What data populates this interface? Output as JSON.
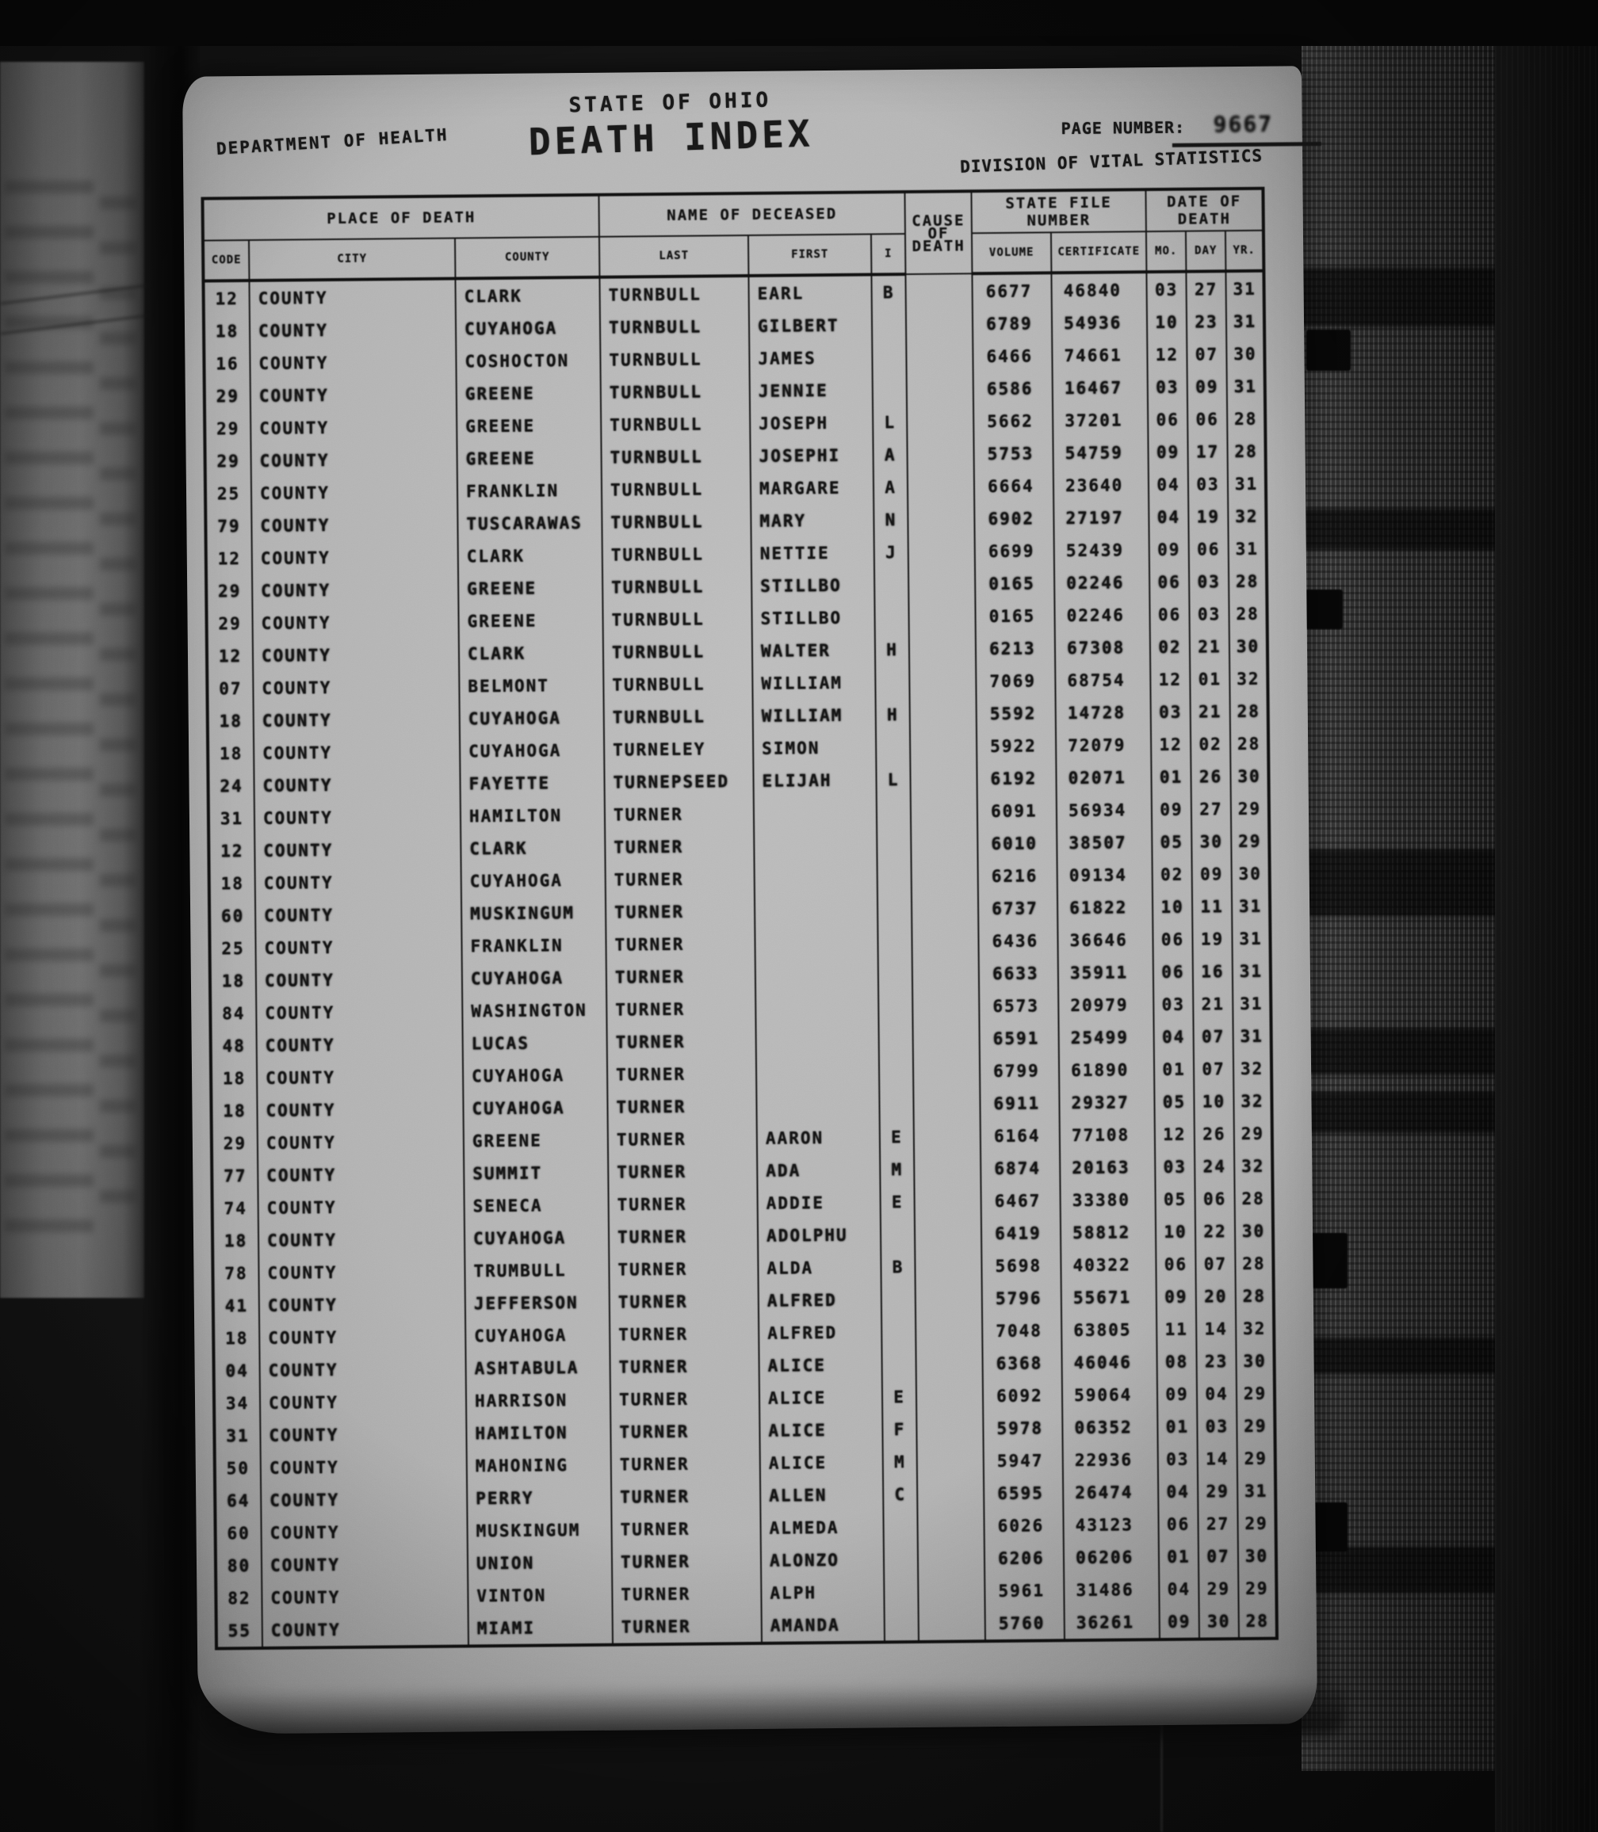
{
  "colors": {
    "page_bg": "#b4b4b4",
    "ink": "#1a1a1a",
    "film_bg": "#0e0e0e"
  },
  "header": {
    "department": "DEPARTMENT OF HEALTH",
    "state": "STATE OF OHIO",
    "title": "DEATH INDEX",
    "page_number_label": "PAGE NUMBER:",
    "page_number": "9667",
    "division": "DIVISION OF VITAL STATISTICS"
  },
  "table": {
    "groups": [
      {
        "label": "PLACE OF DEATH"
      },
      {
        "label": "NAME OF DECEASED"
      },
      {
        "label": "CAUSE OF DEATH"
      },
      {
        "label": "STATE FILE NUMBER"
      },
      {
        "label": "DATE OF DEATH"
      }
    ],
    "sub_columns": [
      "CODE",
      "CITY",
      "COUNTY",
      "LAST",
      "FIRST",
      "I",
      "VOLUME",
      "CERTIFICATE",
      "MO.",
      "DAY",
      "YR."
    ],
    "rows": [
      [
        "12",
        "COUNTY",
        "CLARK",
        "TURNBULL",
        "EARL",
        "B",
        "",
        "6677",
        "46840",
        "03",
        "27",
        "31"
      ],
      [
        "18",
        "COUNTY",
        "CUYAHOGA",
        "TURNBULL",
        "GILBERT",
        "",
        "",
        "6789",
        "54936",
        "10",
        "23",
        "31"
      ],
      [
        "16",
        "COUNTY",
        "COSHOCTON",
        "TURNBULL",
        "JAMES",
        "",
        "",
        "6466",
        "74661",
        "12",
        "07",
        "30"
      ],
      [
        "29",
        "COUNTY",
        "GREENE",
        "TURNBULL",
        "JENNIE",
        "",
        "",
        "6586",
        "16467",
        "03",
        "09",
        "31"
      ],
      [
        "29",
        "COUNTY",
        "GREENE",
        "TURNBULL",
        "JOSEPH",
        "L",
        "",
        "5662",
        "37201",
        "06",
        "06",
        "28"
      ],
      [
        "29",
        "COUNTY",
        "GREENE",
        "TURNBULL",
        "JOSEPHI",
        "A",
        "",
        "5753",
        "54759",
        "09",
        "17",
        "28"
      ],
      [
        "25",
        "COUNTY",
        "FRANKLIN",
        "TURNBULL",
        "MARGARE",
        "A",
        "",
        "6664",
        "23640",
        "04",
        "03",
        "31"
      ],
      [
        "79",
        "COUNTY",
        "TUSCARAWAS",
        "TURNBULL",
        "MARY",
        "N",
        "",
        "6902",
        "27197",
        "04",
        "19",
        "32"
      ],
      [
        "12",
        "COUNTY",
        "CLARK",
        "TURNBULL",
        "NETTIE",
        "J",
        "",
        "6699",
        "52439",
        "09",
        "06",
        "31"
      ],
      [
        "29",
        "COUNTY",
        "GREENE",
        "TURNBULL",
        "STILLBO",
        "",
        "",
        "0165",
        "02246",
        "06",
        "03",
        "28"
      ],
      [
        "29",
        "COUNTY",
        "GREENE",
        "TURNBULL",
        "STILLBO",
        "",
        "",
        "0165",
        "02246",
        "06",
        "03",
        "28"
      ],
      [
        "12",
        "COUNTY",
        "CLARK",
        "TURNBULL",
        "WALTER",
        "H",
        "",
        "6213",
        "67308",
        "02",
        "21",
        "30"
      ],
      [
        "07",
        "COUNTY",
        "BELMONT",
        "TURNBULL",
        "WILLIAM",
        "",
        "",
        "7069",
        "68754",
        "12",
        "01",
        "32"
      ],
      [
        "18",
        "COUNTY",
        "CUYAHOGA",
        "TURNBULL",
        "WILLIAM",
        "H",
        "",
        "5592",
        "14728",
        "03",
        "21",
        "28"
      ],
      [
        "18",
        "COUNTY",
        "CUYAHOGA",
        "TURNELEY",
        "SIMON",
        "",
        "",
        "5922",
        "72079",
        "12",
        "02",
        "28"
      ],
      [
        "24",
        "COUNTY",
        "FAYETTE",
        "TURNEPSEED",
        "ELIJAH",
        "L",
        "",
        "6192",
        "02071",
        "01",
        "26",
        "30"
      ],
      [
        "31",
        "COUNTY",
        "HAMILTON",
        "TURNER",
        "",
        "",
        "",
        "6091",
        "56934",
        "09",
        "27",
        "29"
      ],
      [
        "12",
        "COUNTY",
        "CLARK",
        "TURNER",
        "",
        "",
        "",
        "6010",
        "38507",
        "05",
        "30",
        "29"
      ],
      [
        "18",
        "COUNTY",
        "CUYAHOGA",
        "TURNER",
        "",
        "",
        "",
        "6216",
        "09134",
        "02",
        "09",
        "30"
      ],
      [
        "60",
        "COUNTY",
        "MUSKINGUM",
        "TURNER",
        "",
        "",
        "",
        "6737",
        "61822",
        "10",
        "11",
        "31"
      ],
      [
        "25",
        "COUNTY",
        "FRANKLIN",
        "TURNER",
        "",
        "",
        "",
        "6436",
        "36646",
        "06",
        "19",
        "31"
      ],
      [
        "18",
        "COUNTY",
        "CUYAHOGA",
        "TURNER",
        "",
        "",
        "",
        "6633",
        "35911",
        "06",
        "16",
        "31"
      ],
      [
        "84",
        "COUNTY",
        "WASHINGTON",
        "TURNER",
        "",
        "",
        "",
        "6573",
        "20979",
        "03",
        "21",
        "31"
      ],
      [
        "48",
        "COUNTY",
        "LUCAS",
        "TURNER",
        "",
        "",
        "",
        "6591",
        "25499",
        "04",
        "07",
        "31"
      ],
      [
        "18",
        "COUNTY",
        "CUYAHOGA",
        "TURNER",
        "",
        "",
        "",
        "6799",
        "61890",
        "01",
        "07",
        "32"
      ],
      [
        "18",
        "COUNTY",
        "CUYAHOGA",
        "TURNER",
        "",
        "",
        "",
        "6911",
        "29327",
        "05",
        "10",
        "32"
      ],
      [
        "29",
        "COUNTY",
        "GREENE",
        "TURNER",
        "AARON",
        "E",
        "",
        "6164",
        "77108",
        "12",
        "26",
        "29"
      ],
      [
        "77",
        "COUNTY",
        "SUMMIT",
        "TURNER",
        "ADA",
        "M",
        "",
        "6874",
        "20163",
        "03",
        "24",
        "32"
      ],
      [
        "74",
        "COUNTY",
        "SENECA",
        "TURNER",
        "ADDIE",
        "E",
        "",
        "6467",
        "33380",
        "05",
        "06",
        "28"
      ],
      [
        "18",
        "COUNTY",
        "CUYAHOGA",
        "TURNER",
        "ADOLPHU",
        "",
        "",
        "6419",
        "58812",
        "10",
        "22",
        "30"
      ],
      [
        "78",
        "COUNTY",
        "TRUMBULL",
        "TURNER",
        "ALDA",
        "B",
        "",
        "5698",
        "40322",
        "06",
        "07",
        "28"
      ],
      [
        "41",
        "COUNTY",
        "JEFFERSON",
        "TURNER",
        "ALFRED",
        "",
        "",
        "5796",
        "55671",
        "09",
        "20",
        "28"
      ],
      [
        "18",
        "COUNTY",
        "CUYAHOGA",
        "TURNER",
        "ALFRED",
        "",
        "",
        "7048",
        "63805",
        "11",
        "14",
        "32"
      ],
      [
        "04",
        "COUNTY",
        "ASHTABULA",
        "TURNER",
        "ALICE",
        "",
        "",
        "6368",
        "46046",
        "08",
        "23",
        "30"
      ],
      [
        "34",
        "COUNTY",
        "HARRISON",
        "TURNER",
        "ALICE",
        "E",
        "",
        "6092",
        "59064",
        "09",
        "04",
        "29"
      ],
      [
        "31",
        "COUNTY",
        "HAMILTON",
        "TURNER",
        "ALICE",
        "F",
        "",
        "5978",
        "06352",
        "01",
        "03",
        "29"
      ],
      [
        "50",
        "COUNTY",
        "MAHONING",
        "TURNER",
        "ALICE",
        "M",
        "",
        "5947",
        "22936",
        "03",
        "14",
        "29"
      ],
      [
        "64",
        "COUNTY",
        "PERRY",
        "TURNER",
        "ALLEN",
        "C",
        "",
        "6595",
        "26474",
        "04",
        "29",
        "31"
      ],
      [
        "60",
        "COUNTY",
        "MUSKINGUM",
        "TURNER",
        "ALMEDA",
        "",
        "",
        "6026",
        "43123",
        "06",
        "27",
        "29"
      ],
      [
        "80",
        "COUNTY",
        "UNION",
        "TURNER",
        "ALONZO",
        "",
        "",
        "6206",
        "06206",
        "01",
        "07",
        "30"
      ],
      [
        "82",
        "COUNTY",
        "VINTON",
        "TURNER",
        "ALPH",
        "",
        "",
        "5961",
        "31486",
        "04",
        "29",
        "29"
      ],
      [
        "55",
        "COUNTY",
        "MIAMI",
        "TURNER",
        "AMANDA",
        "",
        "",
        "5760",
        "36261",
        "09",
        "30",
        "28"
      ]
    ]
  }
}
